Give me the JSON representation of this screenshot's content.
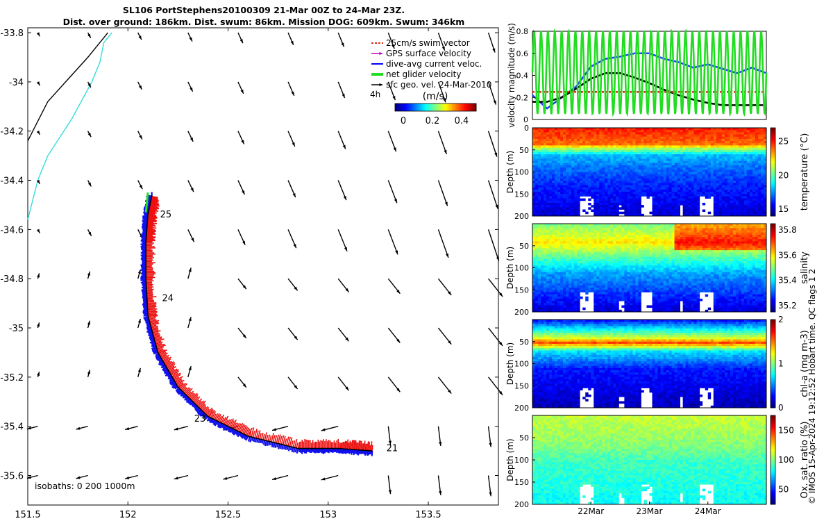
{
  "figure": {
    "title_line1": "SL106 PortStephens20100309 21-Mar 00Z to 24-Mar 23Z.",
    "title_line2": "Dist. over ground: 186km. Dist. swum: 86km. Mission DOG: 609km. Swum: 346km",
    "copyright": "© IMOS 15-Apr-2024 19:12:52 Hobart time. QC flags 1  2"
  },
  "map": {
    "isobaths_label": "isobaths: 0   200  1000m",
    "legend": [
      {
        "label": "25cm/s swim vector",
        "color": "#d7301f"
      },
      {
        "label": "GPS surface velocity",
        "color": "#c000c0"
      },
      {
        "label": "dive-avg current veloc.",
        "color": "#0000ff"
      },
      {
        "label": "net glider velocity",
        "color": "#22dd22"
      },
      {
        "label": "sfc geo. vel. 24-Mar-2010",
        "color": "#000000"
      }
    ],
    "colorbar_unit": "(m/s)",
    "colorbar_ticks": [
      "0",
      "0.2",
      "0.4"
    ],
    "scale_label": "4h",
    "day_labels": [
      "25",
      "24",
      "23",
      "21"
    ],
    "xticks": [
      "151.5",
      "152",
      "152.5",
      "153",
      "153.5"
    ],
    "yticks": [
      "-33.8",
      "-34",
      "-34.2",
      "-34.4",
      "-34.6",
      "-34.8",
      "-35",
      "-35.2",
      "-35.4",
      "-35.6"
    ]
  },
  "chart_data": [
    {
      "type": "scatter",
      "name": "glider track map",
      "xlim": [
        151.5,
        153.85
      ],
      "ylim": [
        -35.72,
        -33.78
      ],
      "track": {
        "lon": [
          153.22,
          153.05,
          152.85,
          152.6,
          152.4,
          152.25,
          152.15,
          152.1,
          152.09,
          152.09,
          152.1,
          152.12
        ],
        "lat": [
          -35.5,
          -35.49,
          -35.49,
          -35.44,
          -35.36,
          -35.24,
          -35.1,
          -34.95,
          -34.8,
          -34.65,
          -34.54,
          -34.46
        ]
      },
      "isobath_0m": {
        "lon": [
          151.5,
          151.6,
          151.7,
          151.8,
          151.9
        ],
        "lat": [
          -34.24,
          -34.08,
          -33.99,
          -33.9,
          -33.8
        ]
      },
      "isobath_200m": {
        "lon": [
          151.5,
          151.55,
          151.6,
          151.72,
          151.82,
          151.86,
          151.88,
          151.92
        ],
        "lat": [
          -34.56,
          -34.4,
          -34.3,
          -34.15,
          -34.0,
          -33.92,
          -33.84,
          -33.8
        ]
      }
    },
    {
      "type": "line",
      "name": "velocity magnitude",
      "ylabel": "velocity magnitude (m/s)",
      "ylim": [
        0,
        0.8
      ],
      "yticks": [
        "0",
        "0.2",
        "0.4",
        "0.6",
        "0.8"
      ],
      "x_days": [
        0,
        0.25,
        0.5,
        0.75,
        1.0,
        1.25,
        1.5,
        1.75,
        2.0,
        2.25,
        2.5,
        2.75,
        3.0,
        3.25,
        3.5,
        3.75,
        4.0
      ],
      "series": [
        {
          "color": "#1f3fff",
          "values": [
            0.22,
            0.1,
            0.2,
            0.3,
            0.48,
            0.55,
            0.57,
            0.6,
            0.6,
            0.55,
            0.52,
            0.47,
            0.5,
            0.46,
            0.42,
            0.47,
            0.42
          ]
        },
        {
          "color": "#000000",
          "values": [
            0.16,
            0.16,
            0.2,
            0.28,
            0.37,
            0.42,
            0.42,
            0.38,
            0.33,
            0.27,
            0.22,
            0.18,
            0.15,
            0.13,
            0.13,
            0.13,
            0.13
          ]
        },
        {
          "color": "#d7301f",
          "dashed": true,
          "values": [
            0.25,
            0.25,
            0.25,
            0.25,
            0.25,
            0.25,
            0.25,
            0.25,
            0.25,
            0.25,
            0.25,
            0.25,
            0.25,
            0.25,
            0.25,
            0.25,
            0.25
          ]
        },
        {
          "color": "#22dd22",
          "oscillating": true,
          "min": 0.05,
          "max": 0.8,
          "cycles": 34
        }
      ]
    },
    {
      "type": "heatmap",
      "name": "temperature section",
      "ylabel": "Depth (m)",
      "cbar_label": "temperature (°C)",
      "ylim": [
        0,
        200
      ],
      "yticks": [
        "0",
        "50",
        "100",
        "150",
        "200"
      ],
      "clim": [
        14,
        27
      ],
      "cbar_ticks": [
        "15",
        "20",
        "25"
      ],
      "profile_surface_to_depth": [
        [
          0,
          25
        ],
        [
          35,
          24
        ],
        [
          45,
          21
        ],
        [
          60,
          18
        ],
        [
          90,
          17
        ],
        [
          130,
          16
        ],
        [
          200,
          15
        ]
      ]
    },
    {
      "type": "heatmap",
      "name": "salinity section",
      "ylabel": "Depth (m)",
      "cbar_label": "salinity",
      "ylim": [
        0,
        200
      ],
      "yticks": [
        "50",
        "100",
        "150",
        "200"
      ],
      "clim": [
        35.15,
        35.85
      ],
      "cbar_ticks": [
        "35.2",
        "35.4",
        "35.6",
        "35.8"
      ],
      "profile_surface_to_depth": [
        [
          0,
          35.5
        ],
        [
          40,
          35.6
        ],
        [
          80,
          35.45
        ],
        [
          110,
          35.35
        ],
        [
          200,
          35.2
        ]
      ]
    },
    {
      "type": "heatmap",
      "name": "chlorophyll section",
      "ylabel": "Depth (m)",
      "cbar_label": "chl-a (mg m-3)",
      "ylim": [
        0,
        200
      ],
      "yticks": [
        "50",
        "100",
        "150",
        "200"
      ],
      "clim": [
        0,
        2
      ],
      "cbar_ticks": [
        "0",
        "1",
        "2"
      ],
      "profile_surface_to_depth": [
        [
          0,
          0.3
        ],
        [
          40,
          1.2
        ],
        [
          50,
          1.6
        ],
        [
          70,
          0.7
        ],
        [
          110,
          0.3
        ],
        [
          200,
          0.1
        ]
      ]
    },
    {
      "type": "heatmap",
      "name": "oxygen section",
      "ylabel": "Depth (m)",
      "cbar_label": "Ox. sat. ratio (%)",
      "ylim": [
        0,
        200
      ],
      "yticks": [
        "50",
        "100",
        "150",
        "200"
      ],
      "clim": [
        25,
        175
      ],
      "cbar_ticks": [
        "50",
        "100",
        "150"
      ],
      "xticks": [
        "22Mar",
        "23Mar",
        "24Mar"
      ],
      "profile_surface_to_depth": [
        [
          0,
          110
        ],
        [
          40,
          105
        ],
        [
          70,
          100
        ],
        [
          100,
          90
        ],
        [
          200,
          82
        ]
      ]
    }
  ]
}
